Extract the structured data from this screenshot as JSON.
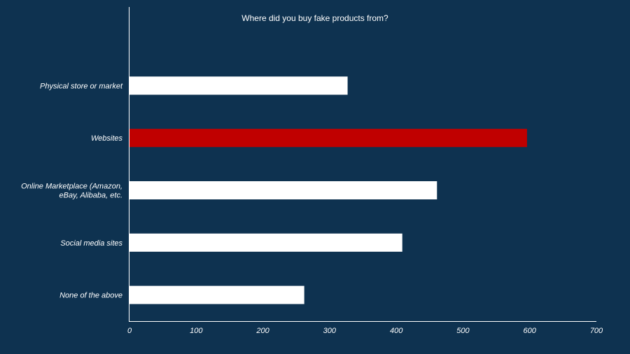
{
  "chart_data": {
    "type": "bar",
    "orientation": "horizontal",
    "title": "Where did you buy fake products from?",
    "categories": [
      [
        "Physical store or market"
      ],
      [
        "Websites"
      ],
      [
        "Online Marketplace (Amazon,",
        "eBay,  Alibaba, etc."
      ],
      [
        "Social media sites"
      ],
      [
        "None of the above"
      ]
    ],
    "values": [
      327,
      596,
      461,
      409,
      262
    ],
    "highlight_index": 1,
    "xlim": [
      0,
      700
    ],
    "xticks": [
      "0",
      "100",
      "200",
      "300",
      "400",
      "500",
      "600",
      "700"
    ],
    "xtick_values": [
      0,
      100,
      200,
      300,
      400,
      500,
      600,
      700
    ],
    "grid": false,
    "colors": {
      "background": "#0e3250",
      "bar": "#ffffff",
      "highlight": "#c00000",
      "axis": "#ffffff"
    }
  }
}
